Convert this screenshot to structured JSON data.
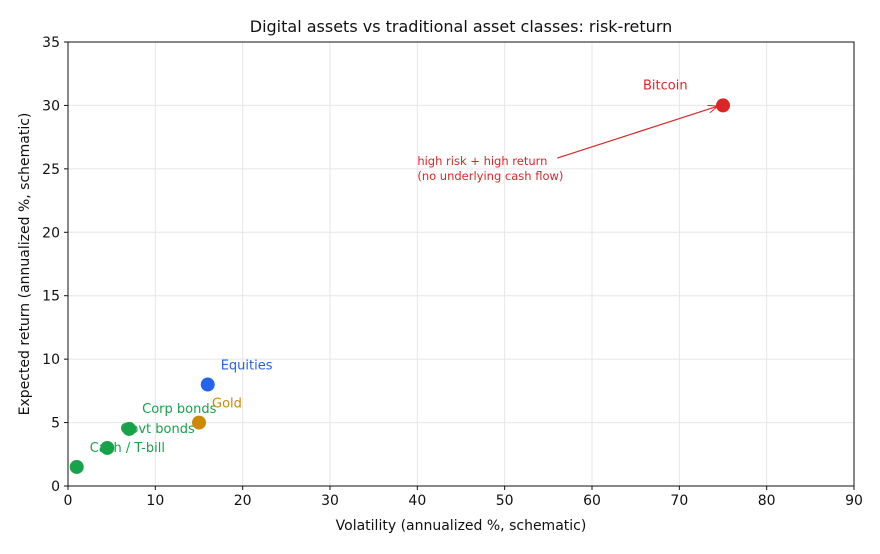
{
  "chart_data": {
    "type": "scatter",
    "title": "Digital assets vs traditional asset classes: risk-return",
    "xlabel": "Volatility (annualized %, schematic)",
    "ylabel": "Expected return (annualized %, schematic)",
    "xlim": [
      0,
      90
    ],
    "ylim": [
      0,
      35
    ],
    "xticks": [
      0,
      10,
      20,
      30,
      40,
      50,
      60,
      70,
      80,
      90
    ],
    "yticks": [
      0,
      5,
      10,
      15,
      20,
      25,
      30,
      35
    ],
    "grid": true,
    "legend": "none",
    "points": [
      {
        "label": "Cash / T-bill",
        "x": 1,
        "y": 1.5,
        "color": "#16a34a"
      },
      {
        "label": "Govt bonds",
        "x": 4.5,
        "y": 3,
        "color": "#16a34a"
      },
      {
        "label": "Corp bonds",
        "x": 7,
        "y": 4.5,
        "color": "#16a34a"
      },
      {
        "label": "Gold",
        "x": 15,
        "y": 5,
        "color": "#ca8a04"
      },
      {
        "label": "Equities",
        "x": 16,
        "y": 8,
        "color": "#2563eb"
      },
      {
        "label": "Bitcoin",
        "x": 75,
        "y": 30,
        "color": "#dc2626"
      }
    ],
    "annotation": {
      "lines": [
        "high risk + high return",
        "(no underlying cash flow)"
      ],
      "x": 40,
      "y": 25.3,
      "arrow_to_x": 75,
      "arrow_to_y": 30,
      "color": "#dc2626"
    }
  }
}
